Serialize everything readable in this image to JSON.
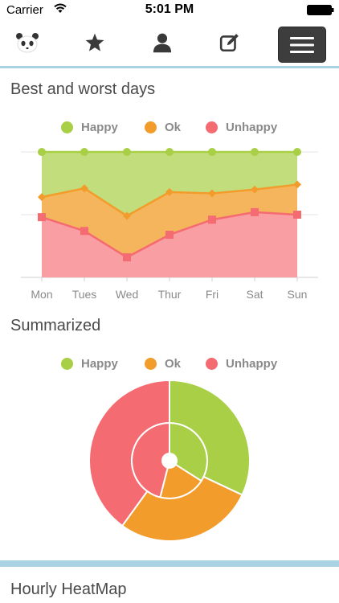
{
  "status_bar": {
    "carrier": "Carrier",
    "time": "5:01 PM"
  },
  "nav": {
    "items": [
      {
        "name": "panda-icon"
      },
      {
        "name": "star-icon"
      },
      {
        "name": "profile-icon"
      },
      {
        "name": "edit-icon"
      },
      {
        "name": "menu-icon"
      }
    ]
  },
  "colors": {
    "happy": "#a8cf45",
    "ok": "#f29c2b",
    "unhappy": "#f46b72",
    "accent": "#a9d3e2"
  },
  "sections": {
    "best_worst_title": "Best and worst days",
    "summarized_title": "Summarized",
    "heatmap_title": "Hourly HeatMap"
  },
  "legend": {
    "happy": "Happy",
    "ok": "Ok",
    "unhappy": "Unhappy"
  },
  "chart_data": [
    {
      "type": "area",
      "stacked": true,
      "categories": [
        "Mon",
        "Tues",
        "Wed",
        "Thur",
        "Fri",
        "Sat",
        "Sun"
      ],
      "series": [
        {
          "name": "Unhappy",
          "values": [
            0.48,
            0.37,
            0.16,
            0.34,
            0.46,
            0.52,
            0.5
          ]
        },
        {
          "name": "Ok",
          "values": [
            0.16,
            0.34,
            0.33,
            0.34,
            0.21,
            0.18,
            0.24
          ]
        },
        {
          "name": "Happy",
          "values": [
            0.36,
            0.29,
            0.51,
            0.32,
            0.33,
            0.3,
            0.26
          ]
        }
      ],
      "ylim": [
        0,
        1
      ],
      "grid": true,
      "legend_position": "top"
    },
    {
      "type": "pie",
      "style": "nested-donut",
      "rings": [
        {
          "ring": "inner",
          "values": [
            {
              "name": "Happy",
              "value": 0.34
            },
            {
              "name": "Ok",
              "value": 0.2
            },
            {
              "name": "Unhappy",
              "value": 0.46
            }
          ]
        },
        {
          "ring": "outer",
          "values": [
            {
              "name": "Happy",
              "value": 0.32
            },
            {
              "name": "Ok",
              "value": 0.28
            },
            {
              "name": "Unhappy",
              "value": 0.4
            }
          ]
        }
      ],
      "legend_position": "top"
    }
  ]
}
